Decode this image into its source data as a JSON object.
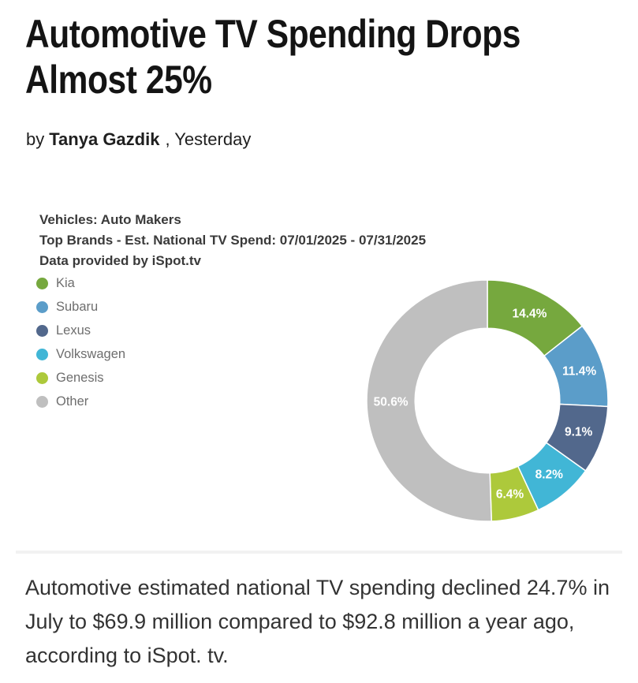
{
  "article": {
    "headline": "Automotive TV Spending Drops Almost 25%",
    "byline": {
      "prefix": "by",
      "author": "Tanya Gazdik",
      "suffix": ", Yesterday"
    },
    "body": "Automotive estimated national TV spending declined 24.7% in July to $69.9 million compared to $92.8 million a year ago, according to iSpot. tv."
  },
  "chart_data": {
    "type": "pie",
    "variant": "donut",
    "title_lines": [
      "Vehicles: Auto Makers",
      "Top Brands - Est. National TV Spend: 07/01/2025 - 07/31/2025",
      "Data provided by iSpot.tv"
    ],
    "series": [
      {
        "name": "Kia",
        "value": 14.4,
        "label": "14.4%",
        "color": "#76a83e"
      },
      {
        "name": "Subaru",
        "value": 11.4,
        "label": "11.4%",
        "color": "#5b9dc9"
      },
      {
        "name": "Lexus",
        "value": 9.1,
        "label": "9.1%",
        "color": "#52688c"
      },
      {
        "name": "Volkswagen",
        "value": 8.2,
        "label": "8.2%",
        "color": "#41b6d6"
      },
      {
        "name": "Genesis",
        "value": 6.4,
        "label": "6.4%",
        "color": "#adc93b"
      },
      {
        "name": "Other",
        "value": 50.6,
        "label": "50.6%",
        "color": "#bfbfbf"
      }
    ],
    "legend_position": "left",
    "start_angle_deg": 0,
    "inner_radius_ratio": 0.6,
    "slice_label_color": "#ffffff",
    "slice_separator_color": "#ffffff"
  }
}
